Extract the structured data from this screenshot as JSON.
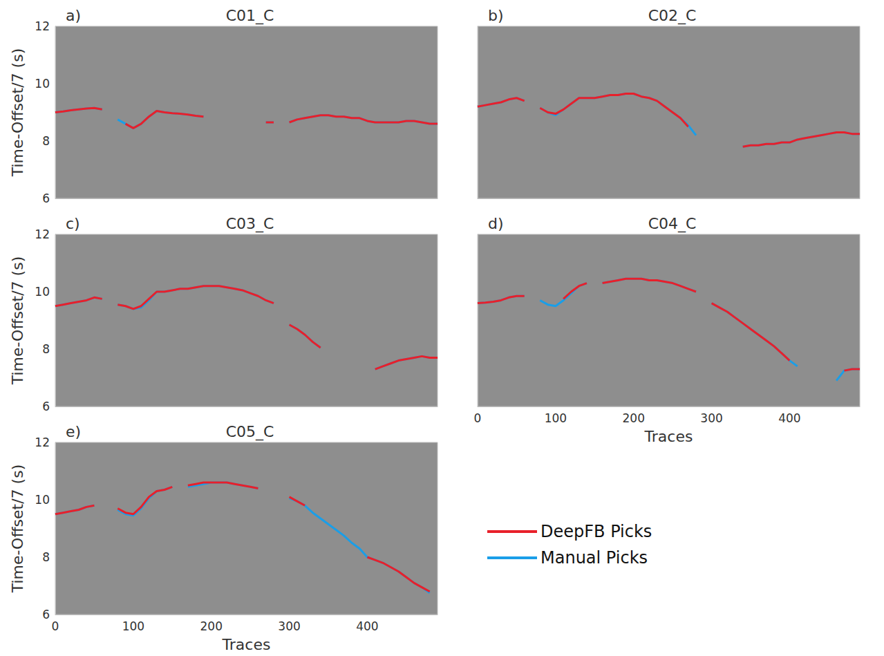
{
  "chart_data": [
    {
      "type": "line",
      "panel": "a)",
      "title": "C01_C",
      "y_label": "Time-Offset/7 (s)",
      "tick_labels": "y",
      "x": [
        0,
        10,
        20,
        30,
        40,
        50,
        60,
        70,
        80,
        90,
        100,
        110,
        120,
        130,
        140,
        150,
        160,
        170,
        180,
        190,
        200,
        210,
        220,
        230,
        240,
        250,
        260,
        270,
        280,
        290,
        300,
        310,
        320,
        330,
        340,
        350,
        360,
        370,
        380,
        390,
        400,
        410,
        420,
        430,
        440,
        450,
        460,
        470,
        480,
        490
      ],
      "xlim": [
        0,
        490
      ],
      "xticks": [
        0,
        100,
        200,
        300,
        400
      ],
      "ylim": [
        6,
        12
      ],
      "yticks": [
        6,
        8,
        10,
        12
      ],
      "series": [
        {
          "name": "DeepFB Picks",
          "color": "#e8202a",
          "values": [
            9.0,
            9.03,
            9.07,
            9.1,
            9.13,
            9.15,
            9.1,
            null,
            null,
            8.6,
            8.45,
            8.6,
            8.85,
            9.05,
            9.0,
            8.97,
            8.95,
            8.92,
            8.88,
            8.85,
            null,
            null,
            null,
            null,
            null,
            null,
            null,
            8.65,
            8.65,
            null,
            8.65,
            8.75,
            8.8,
            8.85,
            8.9,
            8.9,
            8.85,
            8.85,
            8.8,
            8.8,
            8.7,
            8.65,
            8.65,
            8.65,
            8.65,
            8.7,
            8.7,
            8.65,
            8.6,
            8.6
          ]
        },
        {
          "name": "Manual Picks",
          "color": "#1a9ee8",
          "values": [
            9.0,
            9.03,
            9.07,
            9.1,
            9.13,
            9.15,
            9.1,
            null,
            8.75,
            8.6,
            8.45,
            8.6,
            8.85,
            9.05,
            9.0,
            8.97,
            8.95,
            8.92,
            8.88,
            8.85,
            null,
            null,
            null,
            null,
            null,
            null,
            null,
            8.65,
            8.65,
            null,
            8.65,
            8.75,
            8.8,
            8.85,
            8.9,
            8.9,
            8.85,
            8.85,
            8.8,
            8.8,
            8.7,
            8.65,
            8.65,
            8.65,
            8.65,
            8.7,
            8.7,
            8.65,
            8.6,
            8.6
          ]
        }
      ]
    },
    {
      "type": "line",
      "panel": "b)",
      "title": "C02_C",
      "tick_labels": false,
      "x": [
        0,
        10,
        20,
        30,
        40,
        50,
        60,
        70,
        80,
        90,
        100,
        110,
        120,
        130,
        140,
        150,
        160,
        170,
        180,
        190,
        200,
        210,
        220,
        230,
        240,
        250,
        260,
        270,
        280,
        290,
        300,
        310,
        320,
        330,
        340,
        350,
        360,
        370,
        380,
        390,
        400,
        410,
        420,
        430,
        440,
        450,
        460,
        470,
        480,
        490
      ],
      "xlim": [
        0,
        490
      ],
      "xticks": [
        0,
        100,
        200,
        300,
        400
      ],
      "ylim": [
        6,
        12
      ],
      "yticks": [
        6,
        8,
        10,
        12
      ],
      "series": [
        {
          "name": "DeepFB Picks",
          "color": "#e8202a",
          "values": [
            9.2,
            9.25,
            9.3,
            9.35,
            9.45,
            9.5,
            9.4,
            null,
            9.15,
            9.0,
            8.95,
            9.1,
            9.3,
            9.5,
            9.5,
            9.5,
            9.55,
            9.6,
            9.6,
            9.65,
            9.65,
            9.55,
            9.5,
            9.4,
            9.2,
            9.0,
            8.8,
            8.5,
            null,
            null,
            null,
            null,
            null,
            null,
            7.8,
            7.85,
            7.85,
            7.9,
            7.9,
            7.95,
            7.95,
            8.05,
            8.1,
            8.15,
            8.2,
            8.25,
            8.3,
            8.3,
            8.25,
            8.25
          ]
        },
        {
          "name": "Manual Picks",
          "color": "#1a9ee8",
          "values": [
            9.2,
            9.25,
            9.3,
            9.35,
            9.45,
            9.5,
            9.4,
            null,
            9.15,
            9.0,
            8.9,
            9.1,
            9.3,
            9.5,
            9.5,
            9.5,
            9.55,
            9.6,
            9.6,
            9.65,
            9.65,
            9.55,
            9.5,
            9.4,
            9.2,
            9.0,
            8.8,
            8.55,
            8.2,
            null,
            null,
            null,
            null,
            null,
            7.8,
            7.85,
            7.85,
            7.9,
            7.9,
            7.95,
            7.95,
            8.05,
            8.1,
            8.15,
            8.2,
            8.25,
            8.3,
            8.3,
            8.25,
            8.25
          ]
        }
      ]
    },
    {
      "type": "line",
      "panel": "c)",
      "title": "C03_C",
      "y_label": "Time-Offset/7 (s)",
      "tick_labels": "y",
      "x": [
        0,
        10,
        20,
        30,
        40,
        50,
        60,
        70,
        80,
        90,
        100,
        110,
        120,
        130,
        140,
        150,
        160,
        170,
        180,
        190,
        200,
        210,
        220,
        230,
        240,
        250,
        260,
        270,
        280,
        290,
        300,
        310,
        320,
        330,
        340,
        350,
        360,
        370,
        380,
        390,
        400,
        410,
        420,
        430,
        440,
        450,
        460,
        470,
        480,
        490
      ],
      "xlim": [
        0,
        490
      ],
      "xticks": [
        0,
        100,
        200,
        300,
        400
      ],
      "ylim": [
        6,
        12
      ],
      "yticks": [
        6,
        8,
        10,
        12
      ],
      "series": [
        {
          "name": "DeepFB Picks",
          "color": "#e8202a",
          "values": [
            9.5,
            9.55,
            9.6,
            9.65,
            9.7,
            9.8,
            9.75,
            null,
            9.55,
            9.5,
            9.4,
            9.5,
            9.75,
            10.0,
            10.0,
            10.05,
            10.1,
            10.1,
            10.15,
            10.2,
            10.2,
            10.2,
            10.15,
            10.1,
            10.05,
            9.95,
            9.85,
            9.7,
            9.6,
            null,
            8.85,
            8.7,
            8.5,
            8.25,
            8.05,
            null,
            null,
            null,
            null,
            null,
            null,
            7.3,
            7.4,
            7.5,
            7.6,
            7.65,
            7.7,
            7.75,
            7.7,
            7.7
          ]
        },
        {
          "name": "Manual Picks",
          "color": "#1a9ee8",
          "values": [
            9.5,
            9.55,
            9.6,
            9.65,
            9.7,
            9.8,
            9.75,
            null,
            9.55,
            9.5,
            9.4,
            9.45,
            9.7,
            10.0,
            10.0,
            10.05,
            10.1,
            10.1,
            10.15,
            10.2,
            10.2,
            10.2,
            10.15,
            10.1,
            10.05,
            9.95,
            9.85,
            9.7,
            9.6,
            null,
            8.85,
            8.7,
            8.5,
            8.25,
            8.05,
            null,
            null,
            null,
            null,
            null,
            null,
            7.3,
            7.4,
            7.5,
            7.6,
            7.65,
            7.7,
            7.75,
            7.7,
            7.7
          ]
        }
      ]
    },
    {
      "type": "line",
      "panel": "d)",
      "title": "C04_C",
      "x_label": "Traces",
      "tick_labels": "x",
      "x": [
        0,
        10,
        20,
        30,
        40,
        50,
        60,
        70,
        80,
        90,
        100,
        110,
        120,
        130,
        140,
        150,
        160,
        170,
        180,
        190,
        200,
        210,
        220,
        230,
        240,
        250,
        260,
        270,
        280,
        290,
        300,
        310,
        320,
        330,
        340,
        350,
        360,
        370,
        380,
        390,
        400,
        410,
        420,
        430,
        440,
        450,
        460,
        470,
        480,
        490
      ],
      "xlim": [
        0,
        490
      ],
      "xticks": [
        0,
        100,
        200,
        300,
        400
      ],
      "ylim": [
        6,
        12
      ],
      "yticks": [
        6,
        8,
        10,
        12
      ],
      "series": [
        {
          "name": "DeepFB Picks",
          "color": "#e8202a",
          "values": [
            9.6,
            9.62,
            9.65,
            9.7,
            9.8,
            9.85,
            9.85,
            null,
            null,
            null,
            null,
            9.75,
            10.0,
            10.2,
            10.3,
            null,
            10.3,
            10.35,
            10.4,
            10.45,
            10.45,
            10.45,
            10.4,
            10.4,
            10.35,
            10.3,
            10.2,
            10.1,
            10.0,
            null,
            9.6,
            9.45,
            9.3,
            9.1,
            8.9,
            8.7,
            8.5,
            8.3,
            8.1,
            7.85,
            7.6,
            null,
            null,
            null,
            null,
            null,
            null,
            7.25,
            7.3,
            7.3
          ]
        },
        {
          "name": "Manual Picks",
          "color": "#1a9ee8",
          "values": [
            9.6,
            9.62,
            9.65,
            9.7,
            9.8,
            9.85,
            9.85,
            null,
            9.7,
            9.55,
            9.5,
            9.7,
            9.95,
            10.2,
            10.3,
            null,
            10.3,
            10.35,
            10.4,
            10.45,
            10.45,
            10.45,
            10.4,
            10.4,
            10.35,
            10.3,
            10.2,
            10.1,
            10.0,
            null,
            9.6,
            9.45,
            9.3,
            9.1,
            8.9,
            8.7,
            8.5,
            8.3,
            8.1,
            7.85,
            7.6,
            7.4,
            null,
            null,
            null,
            null,
            6.9,
            7.25,
            7.3,
            7.3
          ]
        }
      ]
    },
    {
      "type": "line",
      "panel": "e)",
      "title": "C05_C",
      "x_label": "Traces",
      "y_label": "Time-Offset/7 (s)",
      "legend": "lower right",
      "x": [
        0,
        10,
        20,
        30,
        40,
        50,
        60,
        70,
        80,
        90,
        100,
        110,
        120,
        130,
        140,
        150,
        160,
        170,
        180,
        190,
        200,
        210,
        220,
        230,
        240,
        250,
        260,
        270,
        280,
        290,
        300,
        310,
        320,
        330,
        340,
        350,
        360,
        370,
        380,
        390,
        400,
        410,
        420,
        430,
        440,
        450,
        460,
        470,
        480,
        490
      ],
      "xlim": [
        0,
        490
      ],
      "xticks": [
        0,
        100,
        200,
        300,
        400
      ],
      "ylim": [
        6,
        12
      ],
      "yticks": [
        6,
        8,
        10,
        12
      ],
      "series": [
        {
          "name": "DeepFB Picks",
          "color": "#e8202a",
          "values": [
            9.5,
            9.55,
            9.6,
            9.65,
            9.75,
            9.8,
            null,
            null,
            9.7,
            9.55,
            9.5,
            9.75,
            10.1,
            10.3,
            10.35,
            10.45,
            null,
            10.5,
            10.55,
            10.6,
            10.6,
            10.6,
            10.6,
            10.55,
            10.5,
            10.45,
            10.4,
            null,
            null,
            null,
            10.1,
            9.95,
            9.8,
            null,
            null,
            null,
            null,
            null,
            null,
            null,
            8.0,
            7.9,
            7.8,
            7.65,
            7.5,
            7.3,
            7.1,
            6.95,
            6.8,
            null
          ]
        },
        {
          "name": "Manual Picks",
          "color": "#1a9ee8",
          "values": [
            9.5,
            9.55,
            9.6,
            9.65,
            9.75,
            9.8,
            null,
            null,
            9.65,
            9.5,
            9.45,
            9.7,
            10.05,
            10.3,
            10.35,
            10.45,
            null,
            10.45,
            10.5,
            10.55,
            10.6,
            10.6,
            10.6,
            10.55,
            10.5,
            10.45,
            10.4,
            null,
            null,
            null,
            10.05,
            9.95,
            9.8,
            9.55,
            9.35,
            9.15,
            8.95,
            8.75,
            8.5,
            8.3,
            8.0,
            7.9,
            7.8,
            7.65,
            7.5,
            7.3,
            7.1,
            6.95,
            6.75,
            null
          ]
        }
      ]
    }
  ]
}
